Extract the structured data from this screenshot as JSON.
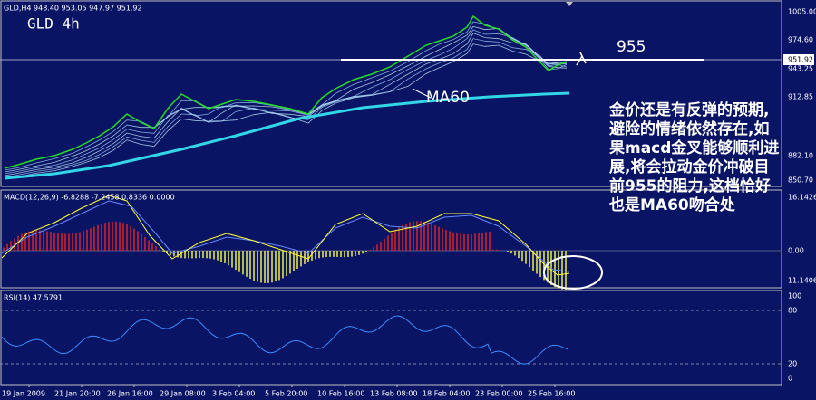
{
  "main_panel": {
    "symbol_info": "GLD,H4  948.40 953.05 947.97 951.92",
    "label": "GLD 4h",
    "level_label": "955",
    "ma_label": "MA60",
    "current_price": "951.92",
    "price_axis": [
      "1005.00",
      "974.60",
      "943.25",
      "912.85",
      "882.10",
      "850.70"
    ]
  },
  "macd_panel": {
    "info": "MACD(12,26,9) -6.8288 -7.2458 0.8336 0.0000",
    "axis": [
      "16.1426",
      "0.00",
      "-11.1406"
    ]
  },
  "rsi_panel": {
    "info": "RSI(14) 47.5791",
    "axis": [
      "100",
      "80",
      "20",
      "0"
    ]
  },
  "dates": [
    "19 Jan 2009",
    "21 Jan 20:00",
    "26 Jan 16:00",
    "29 Jan 08:00",
    "3 Feb 04:00",
    "5 Feb 20:00",
    "10 Feb 16:00",
    "13 Feb 08:00",
    "18 Feb 04:00",
    "23 Feb 00:00",
    "25 Feb 16:00"
  ],
  "annotation": [
    "金价还是有反弹的预期,",
    "避险的情绪依然存在,如",
    "果macd金叉能够顺利进",
    "展,将会拉动金价冲破目",
    "前955的阻力,这档恰好",
    "也是MA60吻合处"
  ]
}
